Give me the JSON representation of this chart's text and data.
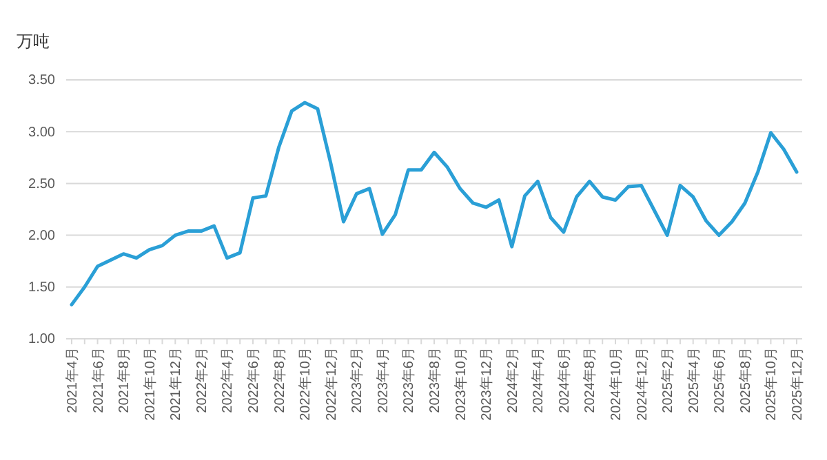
{
  "chart_data": {
    "type": "line",
    "ylabel": "万吨",
    "categories": [
      "2021年4月",
      null,
      "2021年6月",
      null,
      "2021年8月",
      null,
      "2021年10月",
      null,
      "2021年12月",
      null,
      "2022年2月",
      null,
      "2022年4月",
      null,
      "2022年6月",
      null,
      "2022年8月",
      null,
      "2022年10月",
      null,
      "2022年12月",
      null,
      "2023年2月",
      null,
      "2023年4月",
      null,
      "2023年6月",
      null,
      "2023年8月",
      null,
      "2023年10月",
      null,
      "2023年12月",
      null,
      "2024年2月",
      null,
      "2024年4月",
      null,
      "2024年6月",
      null,
      "2024年8月",
      null,
      "2024年10月",
      null,
      "2024年12月",
      null,
      "2025年2月",
      null,
      "2025年4月",
      null,
      "2025年6月",
      null,
      "2025年8月",
      null,
      "2025年10月",
      null,
      "2025年12月"
    ],
    "series": [
      {
        "color": "#2a9fd6",
        "values": [
          1.33,
          1.5,
          1.7,
          1.76,
          1.82,
          1.78,
          1.86,
          1.9,
          2.0,
          2.04,
          2.04,
          2.09,
          1.78,
          1.83,
          2.36,
          2.38,
          2.85,
          3.2,
          3.28,
          3.22,
          2.7,
          2.13,
          2.4,
          2.45,
          2.01,
          2.2,
          2.63,
          2.63,
          2.8,
          2.66,
          2.45,
          2.31,
          2.27,
          2.34,
          1.89,
          2.38,
          2.52,
          2.17,
          2.03,
          2.37,
          2.52,
          2.37,
          2.34,
          2.47,
          2.48,
          2.24,
          2.0,
          2.48,
          2.37,
          2.14,
          2.0,
          2.13,
          2.31,
          2.61,
          2.99,
          2.83,
          2.61
        ]
      }
    ],
    "ylim": [
      1.0,
      3.5
    ],
    "yticks": [
      {
        "value": 1.0,
        "label": "1.00"
      },
      {
        "value": 1.5,
        "label": "1.50"
      },
      {
        "value": 2.0,
        "label": "2.00"
      },
      {
        "value": 2.5,
        "label": "2.50"
      },
      {
        "value": 3.0,
        "label": "3.00"
      },
      {
        "value": 3.5,
        "label": "3.50"
      }
    ],
    "grid": "y",
    "marker": "none",
    "line_style": "solid"
  }
}
